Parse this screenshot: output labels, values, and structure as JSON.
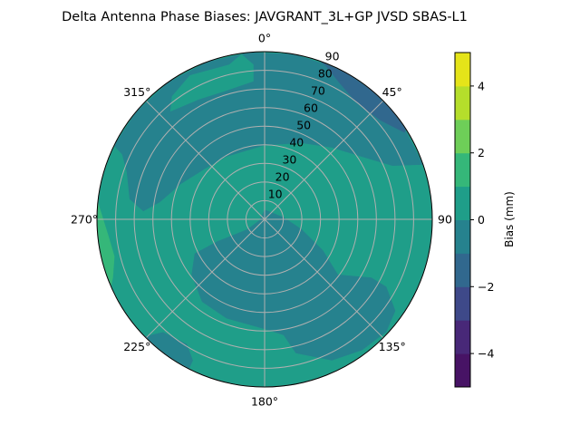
{
  "chart_data": {
    "type": "polar-contour",
    "title": "Delta Antenna Phase Biases: JAVGRANT_3L+GP  JVSD SBAS-L1",
    "angular_ticks": [
      {
        "deg": 0,
        "label": "0°"
      },
      {
        "deg": 45,
        "label": "45°"
      },
      {
        "deg": 90,
        "label": "90"
      },
      {
        "deg": 135,
        "label": "135°"
      },
      {
        "deg": 180,
        "label": "180°"
      },
      {
        "deg": 225,
        "label": "225°"
      },
      {
        "deg": 270,
        "label": "270°"
      },
      {
        "deg": 315,
        "label": "315°"
      }
    ],
    "radial_ticks": [
      "10",
      "20",
      "30",
      "40",
      "50",
      "60",
      "70",
      "80",
      "90"
    ],
    "radial_range": [
      0,
      90
    ],
    "grid": true,
    "colorbar": {
      "label": "Bias (mm)",
      "range": [
        -5,
        5
      ],
      "levels": [
        -5,
        -4,
        -3,
        -2,
        -1,
        0,
        1,
        2,
        3,
        4,
        5
      ],
      "band_colors": [
        "#471365",
        "#482878",
        "#3e4989",
        "#31688e",
        "#26828e",
        "#1f9e89",
        "#35b779",
        "#6ece58",
        "#b5de2b",
        "#e5e419"
      ],
      "ticks": [
        "−4",
        "−2",
        "0",
        "2",
        "4"
      ],
      "tick_values": [
        -4,
        -2,
        0,
        2,
        4
      ]
    },
    "background_level": [
      0,
      1
    ],
    "regions": [
      {
        "level": [
          -1,
          0
        ],
        "points": [
          [
            296,
            90
          ],
          [
            310,
            90
          ],
          [
            325,
            90
          ],
          [
            340,
            90
          ],
          [
            355,
            90
          ],
          [
            10,
            90
          ],
          [
            25,
            90
          ],
          [
            40,
            90
          ],
          [
            55,
            90
          ],
          [
            71,
            90
          ],
          [
            67.3,
            74.4
          ],
          [
            57.4,
            62.2
          ],
          [
            43.2,
            52.8
          ],
          [
            26,
            45.5
          ],
          [
            0,
            39.7
          ],
          [
            328.5,
            39.4
          ],
          [
            310.3,
            41.9
          ],
          [
            292.9,
            48.8
          ],
          [
            279.3,
            57
          ],
          [
            273.8,
            65.3
          ],
          [
            278.5,
            73.3
          ],
          [
            289,
            78.3
          ],
          [
            294.5,
            84.1
          ]
        ]
      },
      {
        "level": [
          0,
          1
        ],
        "points": [
          [
            318.8,
            76.9
          ],
          [
            323,
            82.7
          ],
          [
            332.6,
            87.1
          ],
          [
            347.1,
            85.2
          ],
          [
            352,
            89.6
          ],
          [
            355.9,
            83.3
          ],
          [
            355.4,
            74.3
          ],
          [
            342,
            72
          ],
          [
            331.3,
            73.4
          ]
        ]
      },
      {
        "level": [
          -2,
          -1
        ],
        "points": [
          [
            19,
            90
          ],
          [
            30,
            90
          ],
          [
            40,
            90
          ],
          [
            50,
            90
          ],
          [
            57.6,
            90
          ],
          [
            58.2,
            88.3
          ],
          [
            49.5,
            81.7
          ],
          [
            38,
            79.7
          ],
          [
            28,
            83.9
          ],
          [
            21.8,
            88.6
          ]
        ]
      },
      {
        "level": [
          -1,
          0
        ],
        "points": [
          [
            0,
            5.2
          ],
          [
            83.7,
            10.3
          ],
          [
            105,
            20.6
          ],
          [
            118,
            35.5
          ],
          [
            127,
            49.3
          ],
          [
            118.6,
            65.2
          ],
          [
            119,
            74.7
          ],
          [
            125,
            85.7
          ],
          [
            132.8,
            89
          ],
          [
            143.3,
            87.6
          ],
          [
            154.5,
            84
          ],
          [
            166.9,
            73.8
          ],
          [
            170.7,
            63
          ],
          [
            180,
            58.9
          ],
          [
            201,
            57
          ],
          [
            217.2,
            55.6
          ],
          [
            232.9,
            49.2
          ],
          [
            244,
            41.8
          ],
          [
            245,
            28
          ],
          [
            240,
            10.7
          ],
          [
            260,
            2.8
          ]
        ]
      },
      {
        "level": [
          -1,
          0
        ],
        "points": [
          [
            225.7,
            90
          ],
          [
            216,
            90
          ],
          [
            206.8,
            90
          ],
          [
            206.9,
            85
          ],
          [
            211.9,
            78.9
          ],
          [
            222,
            81.5
          ]
        ]
      },
      {
        "level": [
          1,
          2
        ],
        "points": [
          [
            276,
            90
          ],
          [
            266,
            90
          ],
          [
            256,
            90
          ],
          [
            246.3,
            90
          ],
          [
            249,
            87.2
          ],
          [
            256.1,
            83
          ],
          [
            264.1,
            84.3
          ]
        ]
      }
    ]
  }
}
